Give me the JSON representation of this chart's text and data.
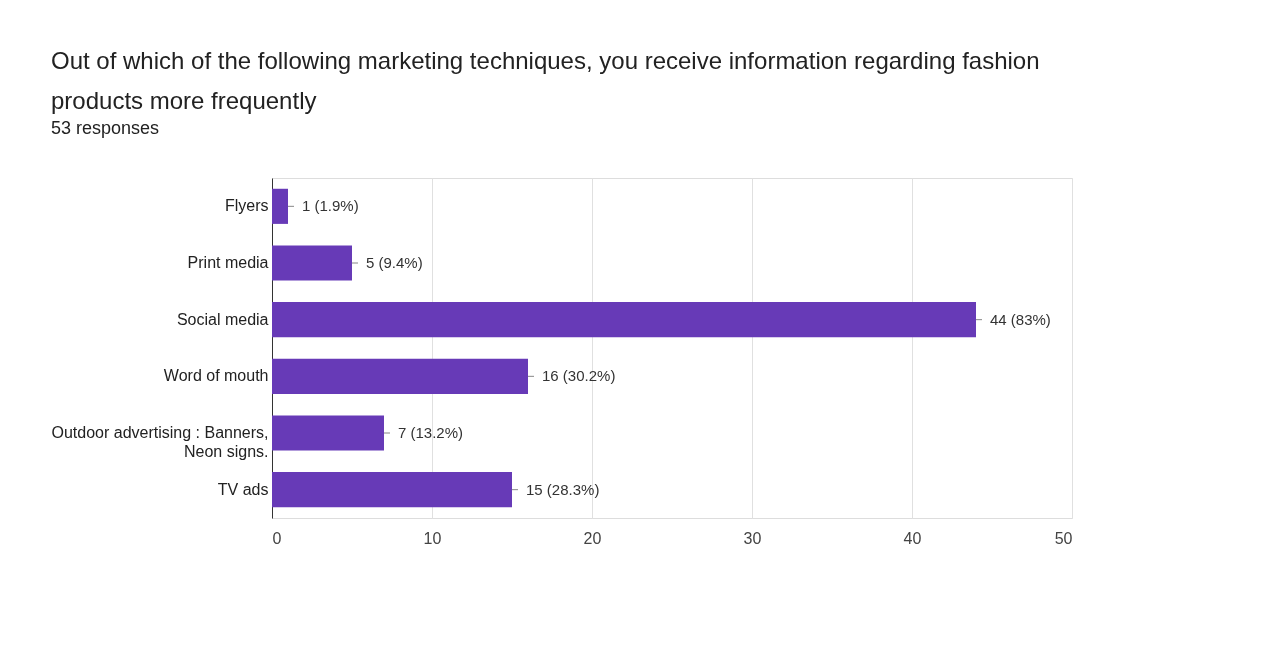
{
  "chart_data": {
    "type": "bar",
    "orientation": "horizontal",
    "title": "Out of which of the following marketing techniques, you receive information regarding fashion products more frequently",
    "subtitle": "53 responses",
    "categories": [
      "Flyers",
      "Print media",
      "Social media",
      "Word of mouth",
      "Outdoor advertising : Banners, Neon signs.",
      "TV ads"
    ],
    "values": [
      1,
      5,
      44,
      16,
      7,
      15
    ],
    "value_labels": [
      "1 (1.9%)",
      "5 (9.4%)",
      "44 (83%)",
      "16 (30.2%)",
      "7 (13.2%)",
      "15 (28.3%)"
    ],
    "color": "#673ab7",
    "xlim": [
      0,
      50
    ],
    "xticks": [
      0,
      10,
      20,
      30,
      40,
      50
    ],
    "grid": "x"
  }
}
